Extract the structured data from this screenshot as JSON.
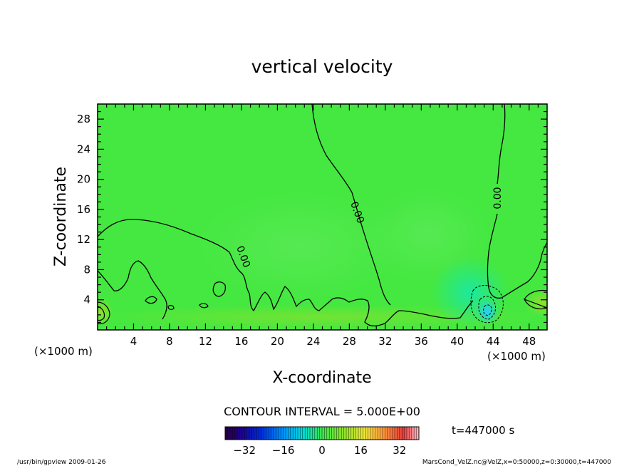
{
  "chart_data": {
    "type": "heatmap",
    "title": "vertical velocity",
    "xlabel": "X-coordinate",
    "ylabel": "Z-coordinate",
    "x_unit": "(×1000 m)",
    "y_unit": "(×1000 m)",
    "xlim": [
      0,
      50
    ],
    "ylim": [
      0,
      30
    ],
    "x_ticks": [
      "4",
      "8",
      "12",
      "16",
      "20",
      "24",
      "28",
      "32",
      "36",
      "40",
      "44",
      "48"
    ],
    "y_ticks": [
      "4",
      "8",
      "12",
      "16",
      "20",
      "24",
      "28"
    ],
    "contour_interval_text": "CONTOUR INTERVAL = 5.000E+00",
    "contour_labels": [
      "0.00",
      "0.00",
      "0.00"
    ],
    "colorbar": {
      "min": -40,
      "max": 40,
      "bins": 80,
      "ticks": [
        "−32",
        "−16",
        "0",
        "16",
        "32"
      ]
    },
    "time_text": "t=447000 s",
    "footer_left": "/usr/bin/gpview  2009-01-26",
    "footer_right": "MarsCond_VelZ.nc@VelZ,x=0:50000,z=0:30000,t=447000"
  }
}
